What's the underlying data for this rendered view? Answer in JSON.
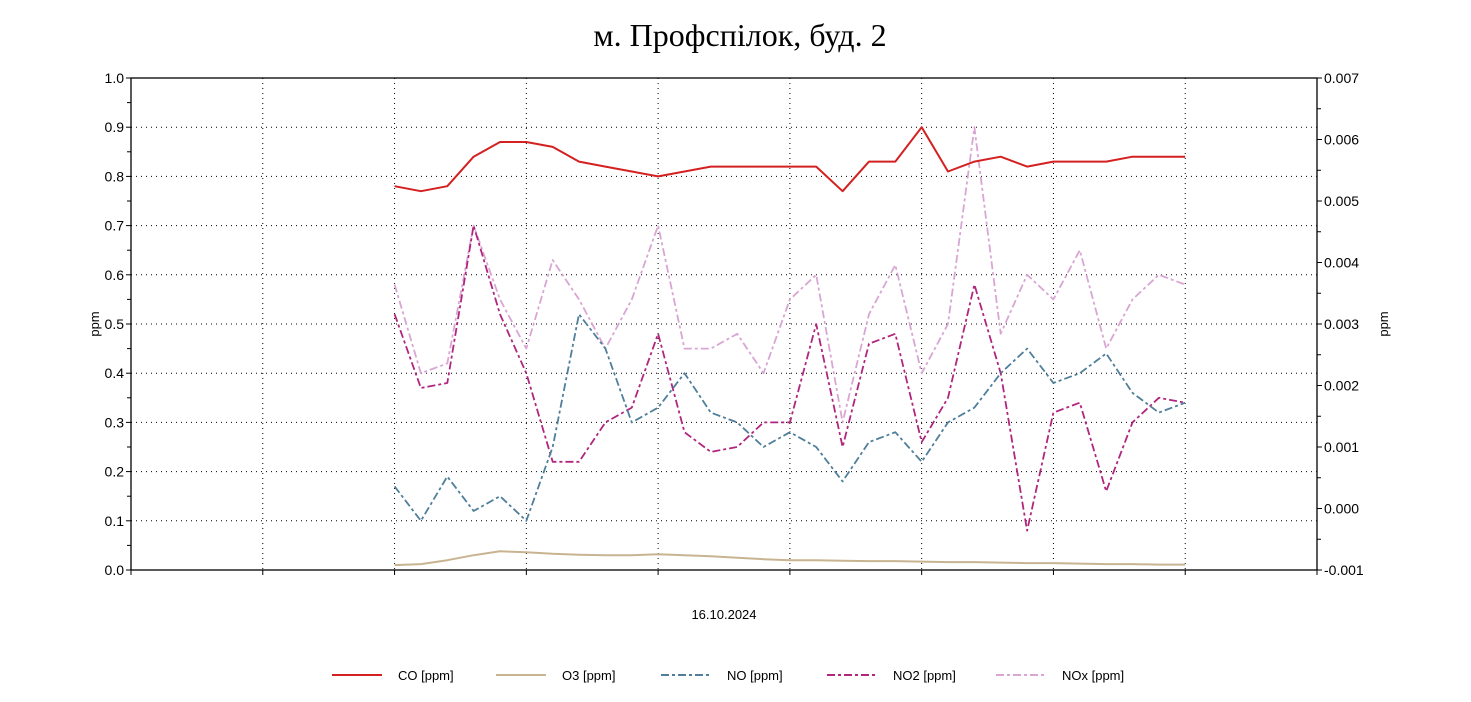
{
  "chart_data": {
    "type": "line",
    "title": "м. Профспілок, буд. 2",
    "xlabel": "16.10.2024",
    "ylabel": "ppm",
    "ylabel_right": "ppm",
    "ylim": [
      0,
      1.0
    ],
    "ylim_right": [
      -0.001,
      0.007
    ],
    "yticks": [
      "0.0",
      "0.1",
      "0.2",
      "0.3",
      "0.4",
      "0.5",
      "0.6",
      "0.7",
      "0.8",
      "0.9",
      "1.0"
    ],
    "yticks_right": [
      "-0.001",
      "0.000",
      "0.001",
      "0.002",
      "0.003",
      "0.004",
      "0.005",
      "0.006",
      "0.007"
    ],
    "grid": true,
    "legend_position": "bottom",
    "x_range": [
      0,
      9
    ],
    "x": [
      2,
      2.2,
      2.4,
      2.6,
      2.8,
      3,
      3.2,
      3.4,
      3.6,
      3.8,
      4,
      4.2,
      4.4,
      4.6,
      4.8,
      5,
      5.2,
      5.4,
      5.6,
      5.8,
      6,
      6.2,
      6.4,
      6.6,
      6.8,
      7,
      7.2,
      7.4,
      7.6,
      7.8,
      8
    ],
    "series": [
      {
        "name": "CO [ppm]",
        "color": "#d42020",
        "style": "solid",
        "values": [
          0.78,
          0.77,
          0.78,
          0.84,
          0.87,
          0.87,
          0.86,
          0.83,
          0.82,
          0.81,
          0.8,
          0.81,
          0.82,
          0.82,
          0.82,
          0.82,
          0.82,
          0.77,
          0.83,
          0.83,
          0.9,
          0.81,
          0.83,
          0.84,
          0.82,
          0.83,
          0.83,
          0.83,
          0.84,
          0.84,
          0.84
        ]
      },
      {
        "name": "O3 [ppm]",
        "color": "#c8b491",
        "style": "solid",
        "values": [
          0.01,
          0.012,
          0.02,
          0.03,
          0.038,
          0.036,
          0.033,
          0.031,
          0.03,
          0.03,
          0.032,
          0.03,
          0.028,
          0.025,
          0.022,
          0.02,
          0.02,
          0.019,
          0.018,
          0.018,
          0.017,
          0.016,
          0.016,
          0.015,
          0.014,
          0.014,
          0.013,
          0.012,
          0.012,
          0.011,
          0.011
        ]
      },
      {
        "name": "NO [ppm]",
        "color": "#4f7f9a",
        "style": "dashdot",
        "values": [
          0.17,
          0.1,
          0.19,
          0.12,
          0.15,
          0.1,
          0.25,
          0.52,
          0.45,
          0.3,
          0.33,
          0.4,
          0.32,
          0.3,
          0.25,
          0.28,
          0.25,
          0.18,
          0.26,
          0.28,
          0.22,
          0.3,
          0.33,
          0.4,
          0.45,
          0.38,
          0.4,
          0.44,
          0.36,
          0.32,
          0.34
        ]
      },
      {
        "name": "NO2 [ppm]",
        "color": "#b0267f",
        "style": "dashdot",
        "values": [
          0.52,
          0.37,
          0.38,
          0.7,
          0.52,
          0.4,
          0.22,
          0.22,
          0.3,
          0.33,
          0.48,
          0.28,
          0.24,
          0.25,
          0.3,
          0.3,
          0.5,
          0.25,
          0.46,
          0.48,
          0.26,
          0.35,
          0.58,
          0.4,
          0.08,
          0.32,
          0.34,
          0.16,
          0.3,
          0.35,
          0.34
        ]
      },
      {
        "name": "NOx [ppm]",
        "color": "#d9a6d4",
        "style": "dashdot",
        "values": [
          0.58,
          0.4,
          0.42,
          0.7,
          0.55,
          0.45,
          0.63,
          0.55,
          0.45,
          0.55,
          0.7,
          0.45,
          0.45,
          0.48,
          0.4,
          0.55,
          0.6,
          0.3,
          0.52,
          0.62,
          0.4,
          0.5,
          0.9,
          0.48,
          0.6,
          0.55,
          0.65,
          0.45,
          0.55,
          0.6,
          0.58
        ]
      }
    ]
  }
}
